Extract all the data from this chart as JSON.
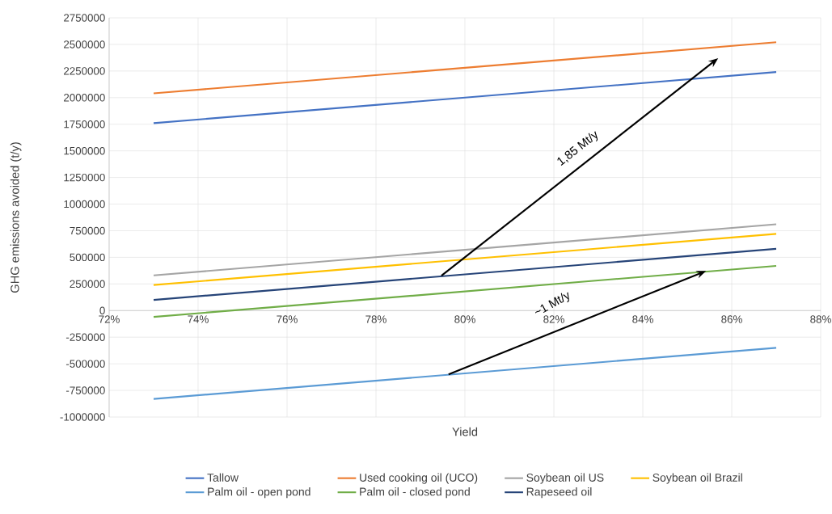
{
  "chart_data": {
    "type": "line",
    "xlabel": "Yield",
    "ylabel": "GHG emissions avoided (t/y)",
    "x": [
      73,
      87
    ],
    "series": [
      {
        "name": "Tallow",
        "color": "#4472c4",
        "values": [
          1760000,
          2240000
        ]
      },
      {
        "name": "Used cooking oil (UCO)",
        "color": "#ed7d31",
        "values": [
          2040000,
          2520000
        ]
      },
      {
        "name": "Soybean oil US",
        "color": "#a5a5a5",
        "values": [
          330000,
          810000
        ]
      },
      {
        "name": "Soybean oil Brazil",
        "color": "#ffc000",
        "values": [
          240000,
          720000
        ]
      },
      {
        "name": "Palm oil - open pond",
        "color": "#5b9bd5",
        "values": [
          -830000,
          -350000
        ]
      },
      {
        "name": "Palm oil - closed pond",
        "color": "#70ad47",
        "values": [
          -60000,
          420000
        ]
      },
      {
        "name": "Rapeseed oil",
        "color": "#264478",
        "values": [
          100000,
          580000
        ]
      }
    ],
    "xlim": [
      72,
      88
    ],
    "xticks": [
      {
        "value": 72,
        "label": "72%"
      },
      {
        "value": 74,
        "label": "74%"
      },
      {
        "value": 76,
        "label": "76%"
      },
      {
        "value": 78,
        "label": "78%"
      },
      {
        "value": 80,
        "label": "80%"
      },
      {
        "value": 82,
        "label": "82%"
      },
      {
        "value": 84,
        "label": "84%"
      },
      {
        "value": 86,
        "label": "86%"
      },
      {
        "value": 88,
        "label": "88%"
      }
    ],
    "ylim": [
      -1000000,
      2750000
    ],
    "yticks": [
      -1000000,
      -750000,
      -500000,
      -250000,
      0,
      250000,
      500000,
      750000,
      1000000,
      1250000,
      1500000,
      1750000,
      2000000,
      2250000,
      2500000,
      2750000
    ],
    "annotations": [
      "1,85 Mt/y",
      "~1 Mt/y"
    ],
    "grid": true,
    "legend": "bottom",
    "marker": "none",
    "line_style": "solid"
  }
}
